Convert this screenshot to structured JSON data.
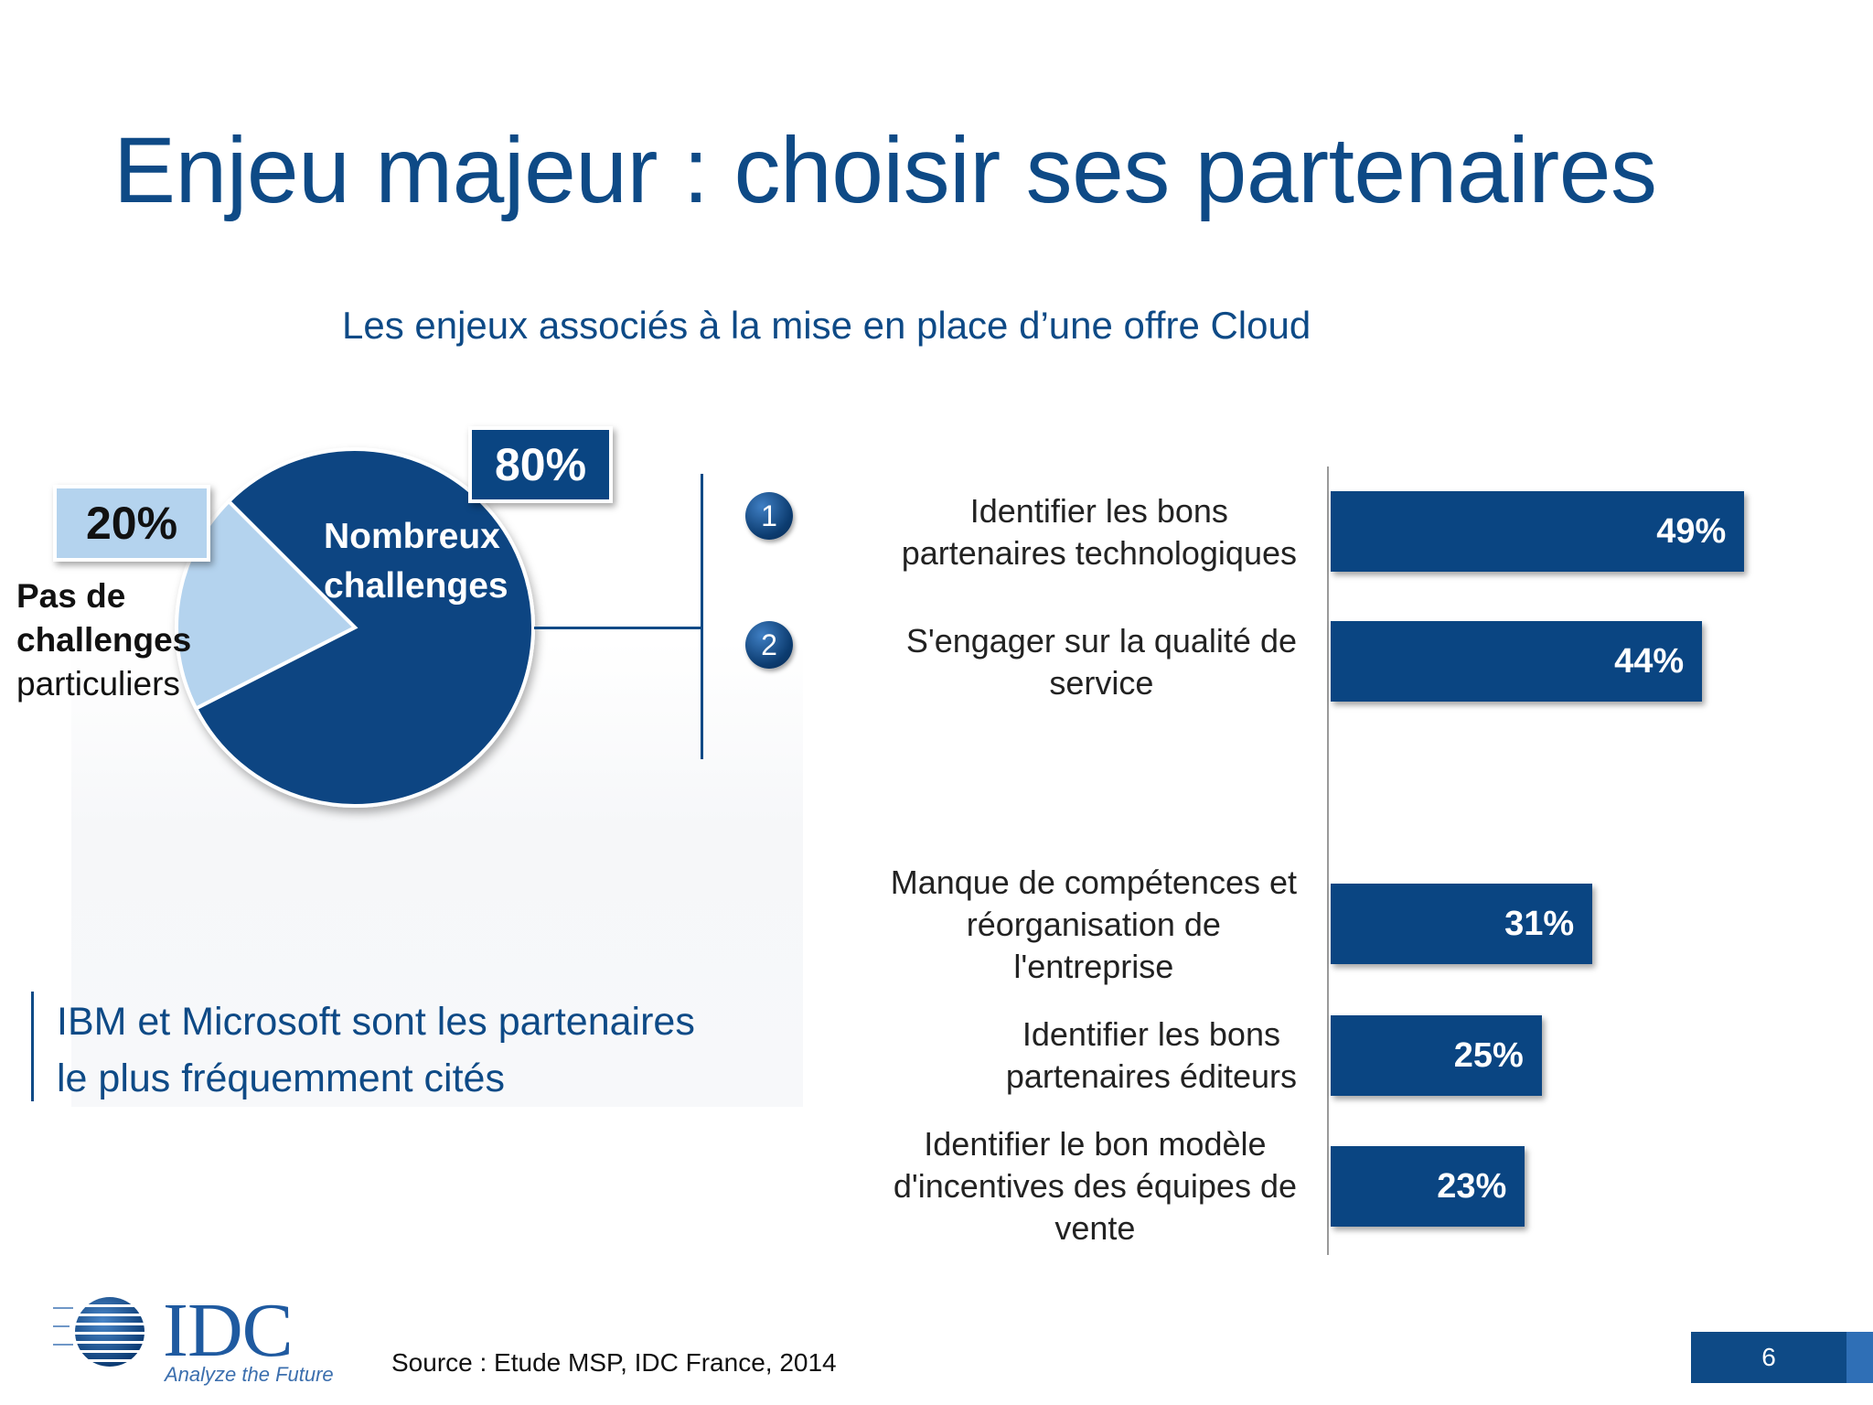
{
  "title": "Enjeu majeur : choisir ses partenaires",
  "subtitle": "Les enjeux associés à la mise en place d’une offre Cloud",
  "colors": {
    "dark_blue": "#0a4582",
    "light_blue": "#b4d3ee",
    "text_blue": "#0e4a86"
  },
  "pie": {
    "slices": [
      {
        "name": "Nombreux challenges",
        "percent_label": "80%",
        "value": 80,
        "label_lines": [
          "Nombreux",
          "challenges"
        ],
        "color": "#0a4582"
      },
      {
        "name": "Pas de challenges particuliers",
        "percent_label": "20%",
        "value": 20,
        "label_bold": [
          "Pas de",
          "challenges"
        ],
        "label_normal": "particuliers",
        "color": "#b4d3ee"
      }
    ]
  },
  "chart_data": {
    "type": "bar",
    "orientation": "horizontal",
    "categories": [
      "Identifier les bons partenaires technologiques",
      "S'engager sur la qualité de service",
      "Manque de compétences et réorganisation de l'entreprise",
      "Identifier les bons partenaires éditeurs",
      "Identifier le bon modèle d'incentives des équipes de vente"
    ],
    "category_lines": [
      [
        "Identifier les bons",
        "partenaires technologiques"
      ],
      [
        "S'engager sur la qualité de",
        "service"
      ],
      [
        "Manque de compétences et",
        "réorganisation de",
        "l'entreprise"
      ],
      [
        "Identifier les bons",
        "partenaires éditeurs"
      ],
      [
        "Identifier le bon modèle",
        "d'incentives des équipes de",
        "vente"
      ]
    ],
    "values": [
      49,
      44,
      31,
      25,
      23
    ],
    "value_labels": [
      "49%",
      "44%",
      "31%",
      "25%",
      "23%"
    ],
    "ranks": [
      "1",
      "2"
    ],
    "unit": "%",
    "xlim": [
      0,
      100
    ]
  },
  "callout": {
    "line1": "IBM et Microsoft sont les partenaires",
    "line2": "le plus fréquemment cités"
  },
  "footer": {
    "logo_text": "IDC",
    "logo_tagline": "Analyze the Future",
    "source": "Source : Etude MSP, IDC France, 2014",
    "page_number": "6"
  }
}
